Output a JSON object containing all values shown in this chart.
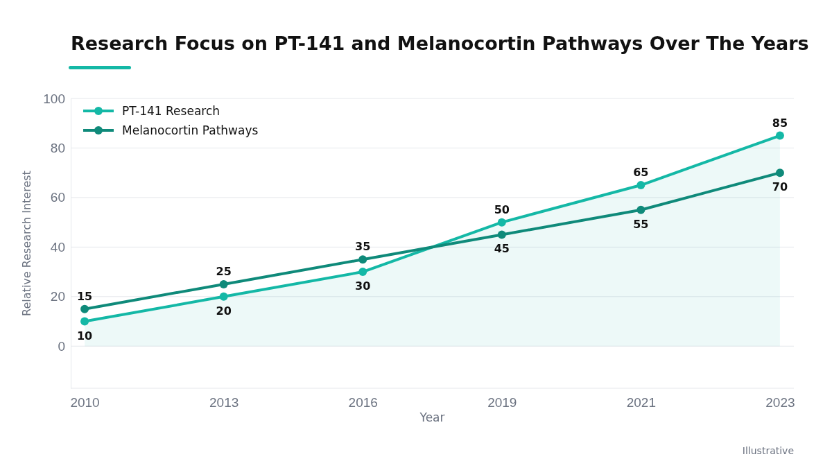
{
  "chart_data": {
    "type": "line",
    "title": "Research Focus on PT-141 and Melanocortin Pathways Over The Years",
    "xlabel": "Year",
    "ylabel": "Relative Research Interest",
    "categories": [
      "2010",
      "2013",
      "2016",
      "2019",
      "2021",
      "2023"
    ],
    "series": [
      {
        "name": "PT-141 Research",
        "type": "area",
        "color": "#14b8a6",
        "values": [
          10,
          20,
          30,
          50,
          65,
          85
        ]
      },
      {
        "name": "Melanocortin Pathways",
        "color": "#0f8a7a",
        "values": [
          15,
          25,
          35,
          45,
          55,
          70
        ]
      }
    ],
    "ylim": [
      -17,
      100
    ],
    "yticks": [
      0,
      20,
      40,
      60,
      80,
      100
    ],
    "grid": "y",
    "legend": "top left",
    "marker": "circle",
    "data_labels": true,
    "annotations": [
      "Illustrative"
    ]
  }
}
